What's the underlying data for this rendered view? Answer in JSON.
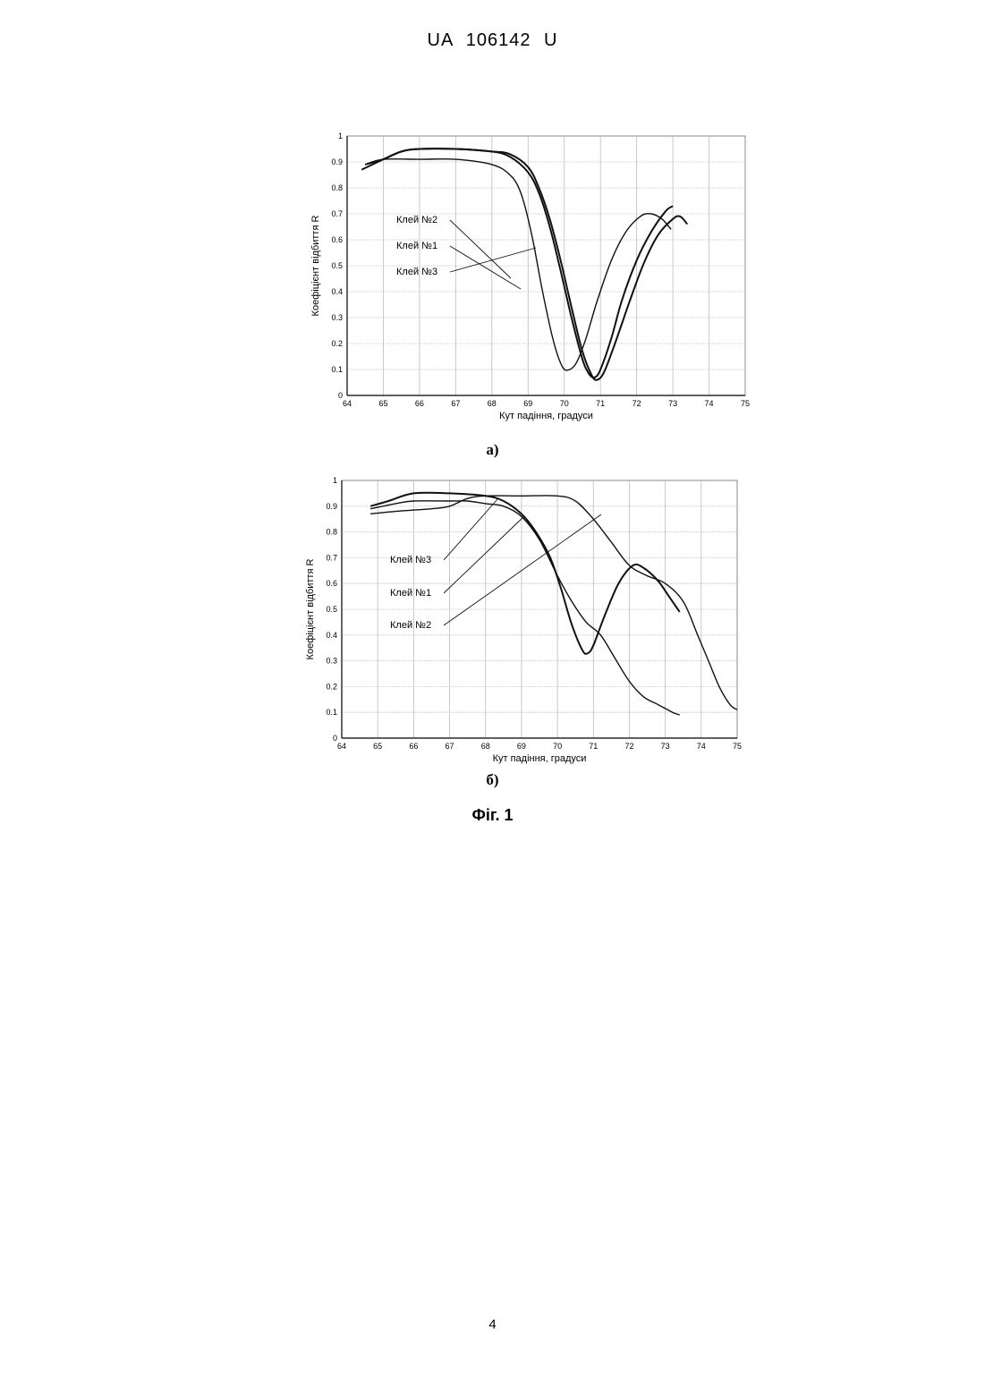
{
  "header": "UA   106142   U",
  "page_number": "4",
  "figure_caption": "Фіг. 1",
  "chart_data": [
    {
      "type": "line",
      "panel_label": "а)",
      "xlabel": "Кут падіння, градуси",
      "ylabel": "Коефіцієнт відбиття R",
      "xlim": [
        64,
        75
      ],
      "ylim": [
        0,
        1
      ],
      "xticks": [
        "64",
        "65",
        "66",
        "67",
        "68",
        "69",
        "70",
        "71",
        "72",
        "73",
        "74",
        "75"
      ],
      "yticks": [
        "0",
        "0.1",
        "0.2",
        "0.3",
        "0.4",
        "0.5",
        "0.6",
        "0.7",
        "0.8",
        "0.9",
        "1"
      ],
      "grid": true,
      "series": [
        {
          "name": "Клей №1",
          "x": [
            64.4,
            65.0,
            65.5,
            66.0,
            67.0,
            68.0,
            68.5,
            69.0,
            69.3,
            69.6,
            69.9,
            70.2,
            70.5,
            70.7,
            70.85,
            71.0,
            71.3,
            71.6,
            72.0,
            72.4,
            72.8,
            73.0
          ],
          "y": [
            0.87,
            0.91,
            0.94,
            0.95,
            0.95,
            0.94,
            0.92,
            0.86,
            0.78,
            0.65,
            0.48,
            0.3,
            0.14,
            0.08,
            0.07,
            0.1,
            0.22,
            0.37,
            0.52,
            0.63,
            0.71,
            0.73
          ]
        },
        {
          "name": "Клей №2",
          "x": [
            64.5,
            65.0,
            65.5,
            66.0,
            67.0,
            68.0,
            68.5,
            69.0,
            69.3,
            69.6,
            69.9,
            70.2,
            70.5,
            70.75,
            70.9,
            71.1,
            71.4,
            71.8,
            72.2,
            72.6,
            73.0,
            73.2,
            73.4
          ],
          "y": [
            0.89,
            0.91,
            0.94,
            0.95,
            0.95,
            0.94,
            0.93,
            0.88,
            0.8,
            0.68,
            0.52,
            0.34,
            0.17,
            0.08,
            0.06,
            0.09,
            0.2,
            0.36,
            0.51,
            0.62,
            0.68,
            0.69,
            0.66
          ]
        },
        {
          "name": "Клей №3",
          "x": [
            64.5,
            65.0,
            66.0,
            67.0,
            68.0,
            68.5,
            68.8,
            69.1,
            69.4,
            69.7,
            69.95,
            70.15,
            70.35,
            70.6,
            70.9,
            71.3,
            71.7,
            72.1,
            72.4,
            72.7,
            72.95
          ],
          "y": [
            0.89,
            0.91,
            0.91,
            0.91,
            0.89,
            0.85,
            0.78,
            0.62,
            0.4,
            0.21,
            0.11,
            0.1,
            0.13,
            0.22,
            0.36,
            0.52,
            0.63,
            0.69,
            0.7,
            0.68,
            0.64
          ]
        }
      ],
      "annotations": [
        "Клей №2",
        "Клей №1",
        "Клей №3"
      ]
    },
    {
      "type": "line",
      "panel_label": "б)",
      "xlabel": "Кут падіння, градуси",
      "ylabel": "Коефіцієнт відбиття R",
      "xlim": [
        64,
        75
      ],
      "ylim": [
        0,
        1
      ],
      "xticks": [
        "64",
        "65",
        "66",
        "67",
        "68",
        "69",
        "70",
        "71",
        "72",
        "73",
        "74",
        "75"
      ],
      "yticks": [
        "0",
        "0.1",
        "0.2",
        "0.3",
        "0.4",
        "0.5",
        "0.6",
        "0.7",
        "0.8",
        "0.9",
        "1"
      ],
      "grid": true,
      "series": [
        {
          "name": "Клей №1",
          "x": [
            64.8,
            65.3,
            66.0,
            67.0,
            68.0,
            68.5,
            69.0,
            69.4,
            69.8,
            70.1,
            70.4,
            70.7,
            70.85,
            71.0,
            71.3,
            71.7,
            72.1,
            72.4,
            72.8,
            73.1,
            73.4
          ],
          "y": [
            0.9,
            0.92,
            0.95,
            0.95,
            0.94,
            0.92,
            0.87,
            0.8,
            0.7,
            0.58,
            0.44,
            0.34,
            0.33,
            0.36,
            0.47,
            0.6,
            0.67,
            0.66,
            0.61,
            0.55,
            0.49
          ]
        },
        {
          "name": "Клей №2",
          "x": [
            64.8,
            65.5,
            66.5,
            67.0,
            67.5,
            68.0,
            69.0,
            70.0,
            70.5,
            71.0,
            71.5,
            72.0,
            72.5,
            73.0,
            73.5,
            73.9,
            74.2,
            74.5,
            74.8,
            75.0
          ],
          "y": [
            0.87,
            0.88,
            0.89,
            0.9,
            0.93,
            0.94,
            0.94,
            0.94,
            0.92,
            0.85,
            0.76,
            0.67,
            0.63,
            0.6,
            0.53,
            0.4,
            0.3,
            0.2,
            0.13,
            0.11
          ]
        },
        {
          "name": "Клей №3",
          "x": [
            64.8,
            65.5,
            66.0,
            67.0,
            67.5,
            68.0,
            68.5,
            69.0,
            69.5,
            70.0,
            70.4,
            70.8,
            71.2,
            71.6,
            72.0,
            72.4,
            72.8,
            73.2,
            73.4
          ],
          "y": [
            0.89,
            0.91,
            0.92,
            0.92,
            0.92,
            0.91,
            0.9,
            0.86,
            0.77,
            0.63,
            0.53,
            0.45,
            0.4,
            0.31,
            0.22,
            0.16,
            0.13,
            0.1,
            0.09
          ]
        }
      ],
      "annotations": [
        "Клей №3",
        "Клей №1",
        "Клей №2"
      ]
    }
  ]
}
